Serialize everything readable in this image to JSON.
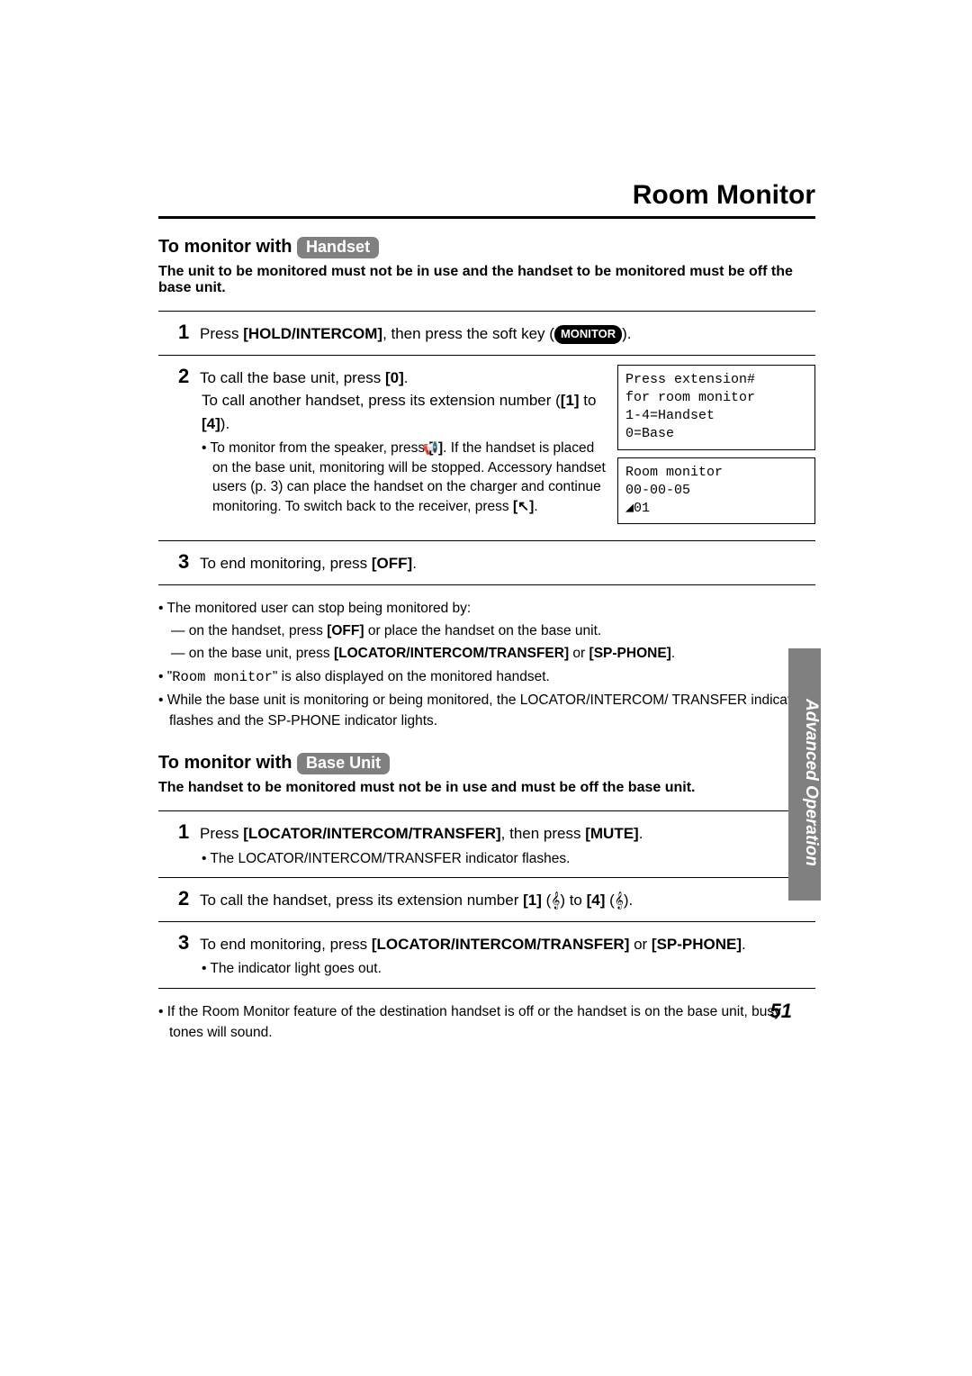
{
  "page": {
    "title": "Room Monitor",
    "pagenum": "51",
    "side_tab": "Advanced Operation"
  },
  "handset": {
    "heading_prefix": "To monitor with ",
    "heading_badge": "Handset",
    "subtext": "The unit to be monitored must not be in use and the handset to be monitored must be off the base unit.",
    "step1_num": "1",
    "step1_text_a": "Press ",
    "step1_text_b": "[HOLD/INTERCOM]",
    "step1_text_c": ", then press the soft key (",
    "step1_badge": "MONITOR",
    "step1_text_d": ").",
    "step2_num": "2",
    "step2_line1_a": "To call the base unit, press ",
    "step2_line1_b": "[0]",
    "step2_line1_c": ".",
    "step2_line2_a": "To call another handset, press its extension number (",
    "step2_line2_b": "[1]",
    "step2_line2_c": " to ",
    "step2_line2_d": "[4]",
    "step2_line2_e": ").",
    "step2_bullet_a": "• To monitor from the speaker, press ",
    "step2_bullet_b": "[",
    "step2_bullet_icon": "📢",
    "step2_bullet_c": "]",
    "step2_bullet_d": ". If the handset is placed on the base unit, monitoring will be stopped. Accessory handset users (p. 3) can place the handset on the charger and continue monitoring. To switch back to the receiver, press ",
    "step2_bullet_e": "[",
    "step2_bullet_icon2": "↖",
    "step2_bullet_f": "]",
    "step2_bullet_g": ".",
    "screen1": "Press extension#\nfor room monitor\n1-4=Handset\n0=Base",
    "screen2": "Room monitor\n00-00-05\n◢01",
    "step3_num": "3",
    "step3_a": "To end monitoring, press ",
    "step3_b": "[OFF]",
    "step3_c": ".",
    "note1": "• The monitored user can stop being monitored by:",
    "note1a_a": "— on the handset, press ",
    "note1a_b": "[OFF]",
    "note1a_c": " or place the handset on the base unit.",
    "note1b_a": "— on the base unit, press ",
    "note1b_b": "[LOCATOR/INTERCOM/TRANSFER]",
    "note1b_c": " or ",
    "note1b_d": "[SP-PHONE]",
    "note1b_e": ".",
    "note2_a": "• \"",
    "note2_b": "Room monitor",
    "note2_c": "\" is also displayed on the monitored handset.",
    "note3": "• While the base unit is monitoring or being monitored, the LOCATOR/INTERCOM/ TRANSFER indicator flashes and the SP-PHONE indicator lights."
  },
  "baseunit": {
    "heading_prefix": "To monitor with ",
    "heading_badge": "Base Unit",
    "subtext": "The handset to be monitored must not be in use and must be off the base unit.",
    "step1_num": "1",
    "step1_a": "Press ",
    "step1_b": "[LOCATOR/INTERCOM/TRANSFER]",
    "step1_c": ", then press ",
    "step1_d": "[MUTE]",
    "step1_e": ".",
    "step1_bullet": "• The LOCATOR/INTERCOM/TRANSFER indicator flashes.",
    "step2_num": "2",
    "step2_a": "To call the handset, press its extension number ",
    "step2_b": "[1]",
    "step2_c": " (",
    "step2_icon1": "𝄞",
    "step2_d": ") to ",
    "step2_e": "[4]",
    "step2_f": " (",
    "step2_icon2": "𝄞",
    "step2_g": ").",
    "step3_num": "3",
    "step3_a": "To end monitoring, press ",
    "step3_b": "[LOCATOR/INTERCOM/TRANSFER]",
    "step3_c": " or ",
    "step3_d": "[SP-PHONE]",
    "step3_e": ".",
    "step3_bullet": "• The indicator light goes out.",
    "note": "• If the Room Monitor feature of the destination handset is off or the handset is on the base unit, busy tones will sound."
  }
}
